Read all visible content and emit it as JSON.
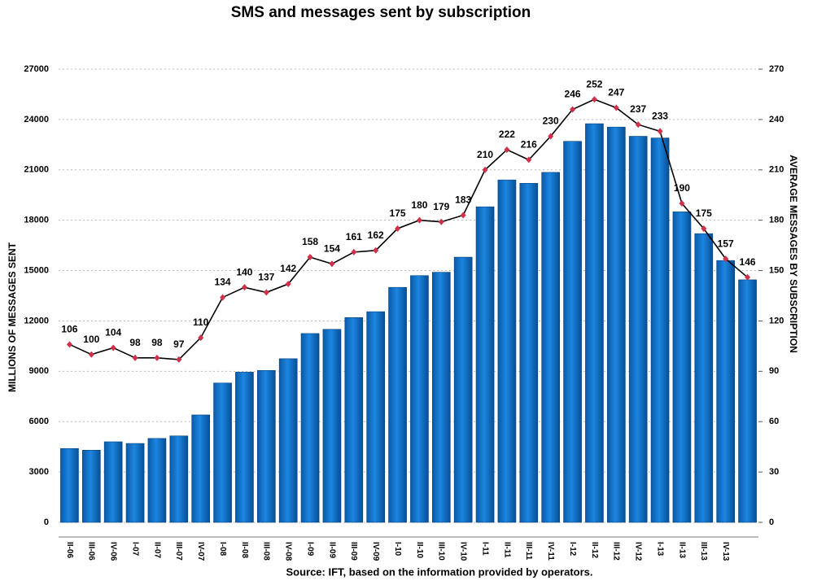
{
  "chart_data": {
    "type": "bar-line",
    "title": "SMS and messages sent by subscription",
    "source": "Source: IFT, based on the information provided by operators.",
    "ylabel": "MILLIONS OF MESSAGES SENT",
    "y2label": "AVERAGE MESSAGES BY SUBSCRIPTION",
    "categories": [
      "II-06",
      "III-06",
      "IV-06",
      "I-07",
      "II-07",
      "III-07",
      "IV-07",
      "I-08",
      "II-08",
      "III-08",
      "IV-08",
      "I-09",
      "II-09",
      "III-09",
      "IV-09",
      "I-10",
      "II-10",
      "III-10",
      "IV-10",
      "I-11",
      "II-11",
      "III-11",
      "IV-11",
      "I-12",
      "II-12",
      "III-12",
      "IV-12",
      "I-13",
      "II-13",
      "III-13",
      "IV-13",
      null
    ],
    "series": [
      {
        "name": "Messages sent",
        "type": "bar",
        "color": "#0a6fc4",
        "axis": "y",
        "values": [
          4400,
          4300,
          4800,
          4700,
          5000,
          5150,
          6400,
          8300,
          8950,
          9050,
          9750,
          11250,
          11500,
          12200,
          12550,
          14000,
          14700,
          14900,
          15800,
          18800,
          20400,
          20200,
          20850,
          22700,
          23750,
          23550,
          23000,
          22900,
          18500,
          17200,
          15600,
          14450
        ]
      },
      {
        "name": "Average messages",
        "type": "line",
        "color": "#000000",
        "marker_color": "#d0304a",
        "axis": "y2",
        "values": [
          106,
          100,
          104,
          98,
          98,
          97,
          110,
          134,
          140,
          137,
          142,
          158,
          154,
          161,
          162,
          175,
          180,
          179,
          183,
          210,
          222,
          216,
          230,
          246,
          252,
          247,
          237,
          233,
          190,
          175,
          157,
          146
        ]
      }
    ],
    "ylim": [
      0,
      27000
    ],
    "yticks": [
      0,
      3000,
      6000,
      9000,
      12000,
      15000,
      18000,
      21000,
      24000,
      27000
    ],
    "y2lim": [
      0,
      270
    ],
    "y2ticks": [
      0,
      30,
      60,
      90,
      120,
      150,
      180,
      210,
      240,
      270
    ]
  }
}
